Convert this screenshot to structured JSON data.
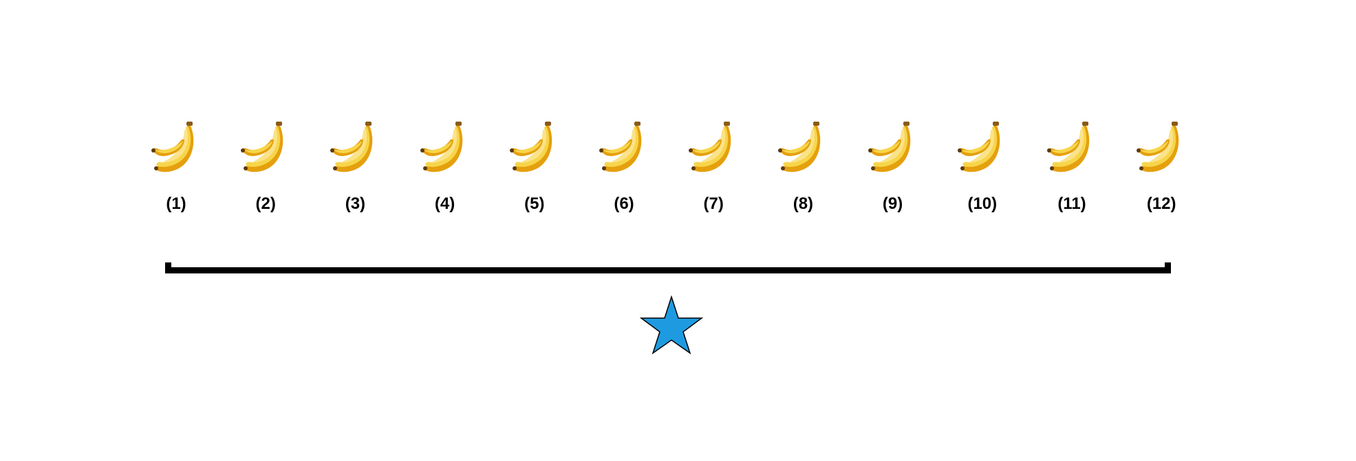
{
  "items": [
    {
      "label": "(1)",
      "icon": "banana-icon"
    },
    {
      "label": "(2)",
      "icon": "banana-icon"
    },
    {
      "label": "(3)",
      "icon": "banana-icon"
    },
    {
      "label": "(4)",
      "icon": "banana-icon"
    },
    {
      "label": "(5)",
      "icon": "banana-icon"
    },
    {
      "label": "(6)",
      "icon": "banana-icon"
    },
    {
      "label": "(7)",
      "icon": "banana-icon"
    },
    {
      "label": "(8)",
      "icon": "banana-icon"
    },
    {
      "label": "(9)",
      "icon": "banana-icon"
    },
    {
      "label": "(10)",
      "icon": "banana-icon"
    },
    {
      "label": "(11)",
      "icon": "banana-icon"
    },
    {
      "label": "(12)",
      "icon": "banana-icon"
    }
  ],
  "beam": {
    "color": "#000000"
  },
  "pivot": {
    "icon": "star-icon",
    "fill": "#1e9be0",
    "stroke": "#000000"
  },
  "colors": {
    "banana_dark": "#e5a00d",
    "banana_light": "#f7d54a",
    "banana_highlight": "#fbe38a",
    "banana_stem": "#8a5a1a",
    "banana_tip": "#5a3a12"
  }
}
